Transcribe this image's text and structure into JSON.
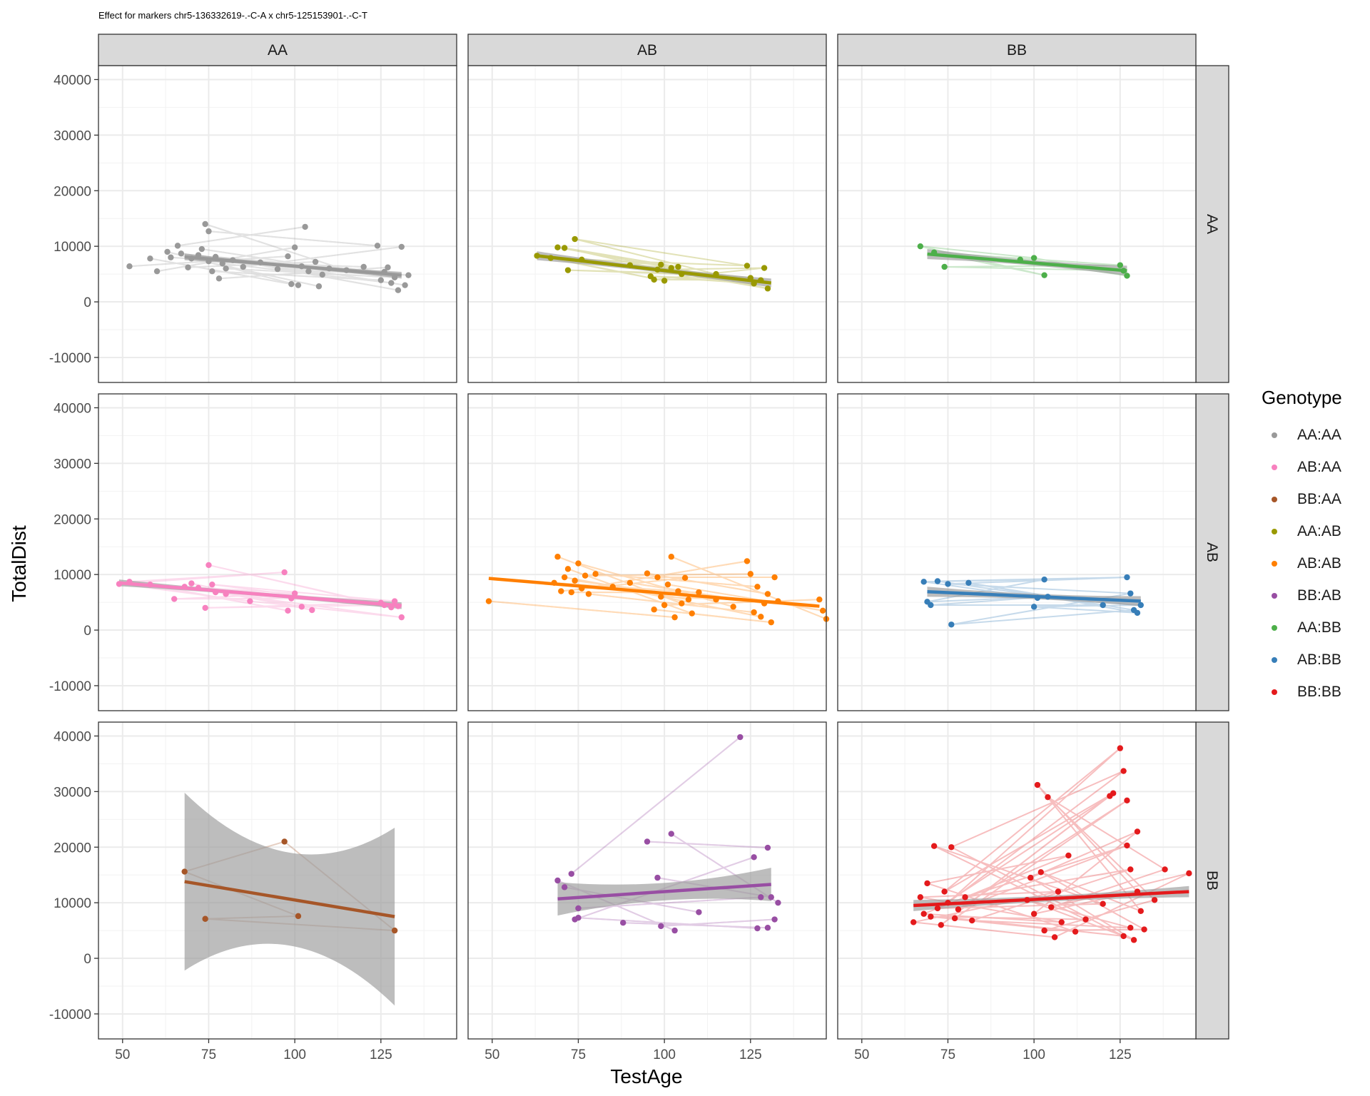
{
  "title": "Effect for markers chr5-136332619-.-C-A x chr5-125153901-.-C-T",
  "chart_data": {
    "type": "scatter",
    "xlabel": "TestAge",
    "ylabel": "TotalDist",
    "xlim": [
      43,
      147
    ],
    "ylim": [
      -14500,
      42500
    ],
    "x_ticks": [
      50,
      75,
      100,
      125
    ],
    "y_ticks": [
      -10000,
      0,
      10000,
      20000,
      30000,
      40000
    ],
    "grid": true,
    "col_facets": [
      "AA",
      "AB",
      "BB"
    ],
    "row_facets": [
      "AA",
      "AB",
      "BB"
    ],
    "legend": {
      "title": "Genotype",
      "position": "right"
    },
    "series": [
      {
        "name": "AA:AA",
        "row": "AA",
        "col": "AA",
        "color": "#999999",
        "points": [
          [
            52,
            6400
          ],
          [
            58,
            7800
          ],
          [
            60,
            5500
          ],
          [
            63,
            9000
          ],
          [
            64,
            8000
          ],
          [
            66,
            10100
          ],
          [
            67,
            8700
          ],
          [
            69,
            6200
          ],
          [
            70,
            7800
          ],
          [
            72,
            8400
          ],
          [
            73,
            9500
          ],
          [
            74,
            14000
          ],
          [
            75,
            7300
          ],
          [
            75,
            12700
          ],
          [
            76,
            5500
          ],
          [
            77,
            8100
          ],
          [
            78,
            4200
          ],
          [
            79,
            6900
          ],
          [
            80,
            6000
          ],
          [
            82,
            7500
          ],
          [
            85,
            6300
          ],
          [
            90,
            7100
          ],
          [
            95,
            5900
          ],
          [
            98,
            8200
          ],
          [
            99,
            3200
          ],
          [
            100,
            9800
          ],
          [
            101,
            3000
          ],
          [
            102,
            6400
          ],
          [
            103,
            13500
          ],
          [
            104,
            5500
          ],
          [
            106,
            7200
          ],
          [
            107,
            2800
          ],
          [
            108,
            4900
          ],
          [
            110,
            6000
          ],
          [
            115,
            5700
          ],
          [
            120,
            6300
          ],
          [
            124,
            10100
          ],
          [
            125,
            3900
          ],
          [
            126,
            5400
          ],
          [
            127,
            6200
          ],
          [
            128,
            3400
          ],
          [
            129,
            4400
          ],
          [
            130,
            2100
          ],
          [
            131,
            9900
          ],
          [
            132,
            3000
          ],
          [
            133,
            4800
          ]
        ],
        "fit": {
          "x0": 68,
          "y0": 8100,
          "x1": 131,
          "y1": 4800
        },
        "band": 600
      },
      {
        "name": "AA:AB",
        "row": "AA",
        "col": "AB",
        "color": "#999900",
        "points": [
          [
            63,
            8300
          ],
          [
            67,
            7900
          ],
          [
            69,
            9800
          ],
          [
            71,
            9700
          ],
          [
            72,
            5700
          ],
          [
            74,
            11300
          ],
          [
            76,
            7600
          ],
          [
            90,
            6600
          ],
          [
            96,
            4600
          ],
          [
            97,
            4000
          ],
          [
            98,
            5800
          ],
          [
            99,
            6700
          ],
          [
            100,
            3800
          ],
          [
            102,
            6100
          ],
          [
            104,
            6300
          ],
          [
            105,
            5000
          ],
          [
            115,
            5000
          ],
          [
            124,
            6500
          ],
          [
            125,
            4300
          ],
          [
            126,
            3300
          ],
          [
            128,
            3900
          ],
          [
            129,
            6100
          ],
          [
            130,
            2400
          ]
        ],
        "fit": {
          "x0": 63,
          "y0": 8300,
          "x1": 131,
          "y1": 3400
        },
        "band": 800
      },
      {
        "name": "AA:BB",
        "row": "AA",
        "col": "BB",
        "color": "#4daf4a",
        "points": [
          [
            67,
            10000
          ],
          [
            71,
            8900
          ],
          [
            74,
            6300
          ],
          [
            96,
            7600
          ],
          [
            100,
            7900
          ],
          [
            103,
            4800
          ],
          [
            125,
            6600
          ],
          [
            126,
            5600
          ],
          [
            127,
            4700
          ]
        ],
        "fit": {
          "x0": 69,
          "y0": 8600,
          "x1": 127,
          "y1": 5600
        },
        "band": 900
      },
      {
        "name": "AB:AA",
        "row": "AB",
        "col": "AA",
        "color": "#f781bf",
        "points": [
          [
            49,
            8300
          ],
          [
            52,
            8700
          ],
          [
            58,
            8200
          ],
          [
            65,
            5600
          ],
          [
            68,
            7800
          ],
          [
            70,
            8400
          ],
          [
            72,
            7600
          ],
          [
            74,
            4000
          ],
          [
            75,
            11700
          ],
          [
            76,
            8200
          ],
          [
            77,
            6800
          ],
          [
            80,
            6500
          ],
          [
            87,
            5200
          ],
          [
            97,
            10400
          ],
          [
            98,
            3500
          ],
          [
            99,
            5700
          ],
          [
            100,
            6600
          ],
          [
            102,
            4200
          ],
          [
            105,
            3600
          ],
          [
            125,
            4900
          ],
          [
            126,
            4500
          ],
          [
            128,
            4100
          ],
          [
            129,
            5200
          ],
          [
            130,
            4300
          ],
          [
            131,
            2300
          ]
        ],
        "fit": {
          "x0": 49,
          "y0": 8500,
          "x1": 131,
          "y1": 4400
        },
        "band": 600
      },
      {
        "name": "AB:AB",
        "row": "AB",
        "col": "AB",
        "color": "#ff7f00",
        "points": [
          [
            49,
            5200
          ],
          [
            68,
            8500
          ],
          [
            69,
            13200
          ],
          [
            70,
            7000
          ],
          [
            71,
            9500
          ],
          [
            72,
            11000
          ],
          [
            73,
            6800
          ],
          [
            74,
            8900
          ],
          [
            75,
            12000
          ],
          [
            76,
            7500
          ],
          [
            77,
            9800
          ],
          [
            78,
            6500
          ],
          [
            80,
            10100
          ],
          [
            85,
            7800
          ],
          [
            90,
            8500
          ],
          [
            95,
            10200
          ],
          [
            97,
            3700
          ],
          [
            98,
            9500
          ],
          [
            99,
            6000
          ],
          [
            100,
            4500
          ],
          [
            101,
            8200
          ],
          [
            102,
            13200
          ],
          [
            103,
            2300
          ],
          [
            104,
            7000
          ],
          [
            105,
            4800
          ],
          [
            106,
            9400
          ],
          [
            107,
            5500
          ],
          [
            108,
            3000
          ],
          [
            110,
            6800
          ],
          [
            115,
            5500
          ],
          [
            120,
            4200
          ],
          [
            124,
            12400
          ],
          [
            125,
            10100
          ],
          [
            126,
            3200
          ],
          [
            127,
            7800
          ],
          [
            128,
            2400
          ],
          [
            129,
            4800
          ],
          [
            130,
            6500
          ],
          [
            131,
            1400
          ],
          [
            132,
            9500
          ],
          [
            133,
            5200
          ],
          [
            145,
            5500
          ],
          [
            146,
            3500
          ],
          [
            147,
            2000
          ]
        ],
        "fit": {
          "x0": 49,
          "y0": 9300,
          "x1": 145,
          "y1": 4300
        },
        "band": 200
      },
      {
        "name": "AB:BB",
        "row": "AB",
        "col": "BB",
        "color": "#377eb8",
        "points": [
          [
            68,
            8700
          ],
          [
            69,
            5100
          ],
          [
            70,
            4500
          ],
          [
            72,
            8800
          ],
          [
            75,
            8300
          ],
          [
            76,
            1000
          ],
          [
            81,
            8500
          ],
          [
            100,
            4200
          ],
          [
            101,
            5800
          ],
          [
            103,
            9100
          ],
          [
            104,
            6000
          ],
          [
            120,
            4500
          ],
          [
            127,
            9500
          ],
          [
            128,
            6600
          ],
          [
            129,
            3600
          ],
          [
            130,
            3100
          ],
          [
            131,
            4500
          ]
        ],
        "fit": {
          "x0": 69,
          "y0": 6900,
          "x1": 131,
          "y1": 5200
        },
        "band": 900
      },
      {
        "name": "BB:AA",
        "row": "BB",
        "col": "AA",
        "color": "#a65628",
        "points": [
          [
            68,
            15600
          ],
          [
            74,
            7100
          ],
          [
            97,
            21000
          ],
          [
            101,
            7600
          ],
          [
            129,
            5000
          ]
        ],
        "fit": {
          "x0": 68,
          "y0": 13800,
          "x1": 129,
          "y1": 7500
        },
        "band": 16000
      },
      {
        "name": "BB:AB",
        "row": "BB",
        "col": "AB",
        "color": "#984ea3",
        "points": [
          [
            69,
            14000
          ],
          [
            71,
            12800
          ],
          [
            73,
            15200
          ],
          [
            74,
            7000
          ],
          [
            75,
            7300
          ],
          [
            75,
            9000
          ],
          [
            88,
            6400
          ],
          [
            95,
            21000
          ],
          [
            98,
            14500
          ],
          [
            99,
            5800
          ],
          [
            102,
            22400
          ],
          [
            103,
            5000
          ],
          [
            110,
            8300
          ],
          [
            122,
            39800
          ],
          [
            126,
            18200
          ],
          [
            127,
            5400
          ],
          [
            128,
            11000
          ],
          [
            130,
            5500
          ],
          [
            130,
            19900
          ],
          [
            131,
            11000
          ],
          [
            132,
            7000
          ],
          [
            133,
            10000
          ]
        ],
        "fit": {
          "x0": 69,
          "y0": 10700,
          "x1": 131,
          "y1": 13300
        },
        "band": 3000
      },
      {
        "name": "BB:BB",
        "row": "BB",
        "col": "BB",
        "color": "#e41a1c",
        "points": [
          [
            65,
            6500
          ],
          [
            67,
            11000
          ],
          [
            68,
            8000
          ],
          [
            69,
            13500
          ],
          [
            70,
            7500
          ],
          [
            71,
            20200
          ],
          [
            72,
            9000
          ],
          [
            73,
            6000
          ],
          [
            74,
            12000
          ],
          [
            75,
            10000
          ],
          [
            76,
            20000
          ],
          [
            77,
            7200
          ],
          [
            78,
            8800
          ],
          [
            80,
            11000
          ],
          [
            82,
            6800
          ],
          [
            98,
            10500
          ],
          [
            99,
            14500
          ],
          [
            100,
            8000
          ],
          [
            101,
            31200
          ],
          [
            102,
            15500
          ],
          [
            103,
            5000
          ],
          [
            104,
            29000
          ],
          [
            105,
            9200
          ],
          [
            106,
            3800
          ],
          [
            107,
            12000
          ],
          [
            108,
            6500
          ],
          [
            110,
            18500
          ],
          [
            112,
            4800
          ],
          [
            115,
            7000
          ],
          [
            120,
            9800
          ],
          [
            122,
            29200
          ],
          [
            123,
            29700
          ],
          [
            125,
            37800
          ],
          [
            126,
            33700
          ],
          [
            126,
            4000
          ],
          [
            127,
            28400
          ],
          [
            127,
            20300
          ],
          [
            128,
            16000
          ],
          [
            128,
            5500
          ],
          [
            129,
            3300
          ],
          [
            130,
            22800
          ],
          [
            130,
            12000
          ],
          [
            131,
            8500
          ],
          [
            132,
            5200
          ],
          [
            135,
            10500
          ],
          [
            138,
            16000
          ],
          [
            145,
            15300
          ]
        ],
        "fit": {
          "x0": 65,
          "y0": 9500,
          "x1": 145,
          "y1": 12000
        },
        "band": 1000
      }
    ]
  }
}
